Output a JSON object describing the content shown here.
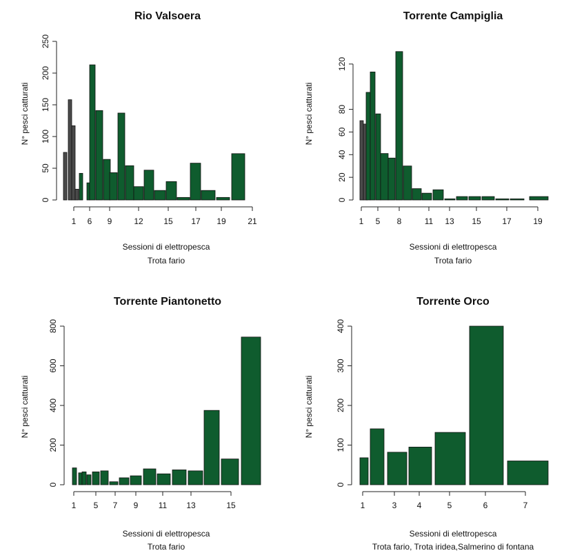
{
  "chart_data": [
    {
      "type": "bar",
      "title": "Rio Valsoera",
      "xlabel": "Sessioni di elettropesca",
      "subtitle": "Trota fario",
      "ylabel": "N° pesci catturati",
      "ylim": [
        0,
        250
      ],
      "yticks": [
        0,
        50,
        100,
        150,
        200,
        250
      ],
      "xtick_labels": [
        "1",
        "6",
        "9",
        "12",
        "15",
        "17",
        "19",
        "21"
      ],
      "series": [
        {
          "color": "#4a4a4a",
          "values": [
            75,
            158,
            117,
            17
          ]
        },
        {
          "color": "#0f5c2e",
          "values": [
            42,
            27,
            213,
            141,
            64,
            43,
            137,
            54,
            21,
            47,
            15,
            29,
            4,
            58,
            15,
            4,
            73
          ]
        }
      ]
    },
    {
      "type": "bar",
      "title": "Torrente Campiglia",
      "xlabel": "Sessioni di elettropesca",
      "subtitle": "Trota fario",
      "ylabel": "N° pesci catturati",
      "ylim": [
        0,
        140
      ],
      "yticks": [
        0,
        20,
        40,
        60,
        80,
        120
      ],
      "xtick_labels": [
        "1",
        "5",
        "8",
        "11",
        "13",
        "15",
        "17",
        "19"
      ],
      "series": [
        {
          "color": "#4a4a4a",
          "values": [
            70,
            67
          ]
        },
        {
          "color": "#0f5c2e",
          "values": [
            95,
            113,
            76,
            41,
            37,
            131,
            30,
            10,
            6,
            9,
            1,
            3,
            3,
            3,
            1,
            1,
            3
          ]
        }
      ]
    },
    {
      "type": "bar",
      "title": "Torrente Piantonetto",
      "xlabel": "Sessioni di elettropesca",
      "subtitle": "Trota fario",
      "ylabel": "N° pesci catturati",
      "ylim": [
        0,
        800
      ],
      "yticks": [
        0,
        200,
        400,
        600,
        800
      ],
      "xtick_labels": [
        "1",
        "5",
        "7",
        "9",
        "11",
        "13",
        "15"
      ],
      "series": [
        {
          "color": "#0f5c2e",
          "values": [
            85,
            60,
            65,
            50,
            65,
            70,
            15,
            35,
            45,
            80,
            55,
            75,
            70,
            375,
            130,
            745
          ]
        }
      ]
    },
    {
      "type": "bar",
      "title": "Torrente Orco",
      "xlabel": "Sessioni di elettropesca",
      "subtitle": "Trota fario, Trota iridea,Salmerino di fontana",
      "ylabel": "N° pesci catturati",
      "ylim": [
        0,
        400
      ],
      "yticks": [
        0,
        100,
        200,
        300,
        400
      ],
      "xtick_labels": [
        "1",
        "3",
        "4",
        "5",
        "6",
        "7"
      ],
      "series": [
        {
          "color": "#0f5c2e",
          "values": [
            68,
            141,
            82,
            95,
            132,
            400,
            60
          ]
        }
      ]
    }
  ]
}
